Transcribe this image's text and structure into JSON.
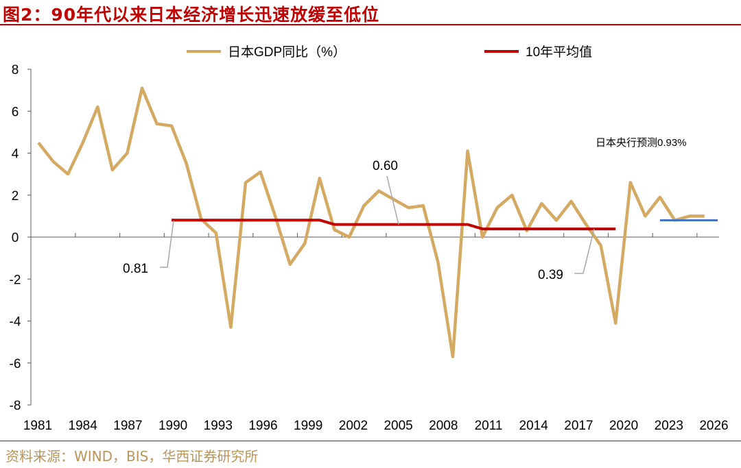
{
  "title": "图2：90年代以来日本经济增长迅速放缓至低位",
  "source": "资料来源：WIND，BIS，华西证券研究所",
  "chart_data": {
    "type": "line",
    "title": "图2：90年代以来日本经济增长迅速放缓至低位",
    "xlabel": "",
    "ylabel": "",
    "ylim": [
      -8,
      8
    ],
    "yticks": [
      -8,
      -6,
      -4,
      -2,
      0,
      2,
      4,
      6,
      8
    ],
    "xtick_labels": [
      "1981",
      "1984",
      "1987",
      "1990",
      "1993",
      "1996",
      "1999",
      "2002",
      "2005",
      "2008",
      "2011",
      "2014",
      "2017",
      "2020",
      "2023",
      "2026"
    ],
    "grid": false,
    "legend": "top",
    "x": [
      1981,
      1982,
      1983,
      1984,
      1985,
      1986,
      1987,
      1988,
      1989,
      1990,
      1991,
      1992,
      1993,
      1994,
      1995,
      1996,
      1997,
      1998,
      1999,
      2000,
      2001,
      2002,
      2003,
      2004,
      2005,
      2006,
      2007,
      2008,
      2009,
      2010,
      2011,
      2012,
      2013,
      2014,
      2015,
      2016,
      2017,
      2018,
      2019,
      2020,
      2021,
      2022,
      2023,
      2024,
      2025,
      2026
    ],
    "series": [
      {
        "name": "日本GDP同比（%）",
        "color": "#D4A962",
        "values": [
          4.5,
          3.6,
          3.0,
          4.5,
          6.2,
          3.2,
          4.0,
          7.1,
          5.4,
          5.3,
          3.5,
          0.85,
          0.2,
          -4.3,
          2.6,
          3.1,
          1.0,
          -1.3,
          -0.3,
          2.8,
          0.35,
          0.0,
          1.5,
          2.2,
          1.8,
          1.4,
          1.5,
          -1.2,
          -5.7,
          4.1,
          0.0,
          1.4,
          2.0,
          0.3,
          1.6,
          0.8,
          1.7,
          0.6,
          -0.4,
          -4.1,
          2.6,
          1.0,
          1.9,
          0.8,
          1.0,
          1.0
        ]
      },
      {
        "name": "10年平均值",
        "color": "#C00000",
        "values": [
          null,
          null,
          null,
          null,
          null,
          null,
          null,
          null,
          null,
          0.81,
          0.81,
          0.81,
          0.81,
          0.81,
          0.81,
          0.81,
          0.81,
          0.81,
          0.81,
          0.81,
          0.6,
          0.6,
          0.6,
          0.6,
          0.6,
          0.6,
          0.6,
          0.6,
          0.6,
          0.6,
          0.39,
          0.39,
          0.39,
          0.39,
          0.39,
          0.39,
          0.39,
          0.39,
          0.39,
          0.39,
          null,
          null,
          null,
          null,
          null,
          null
        ]
      },
      {
        "color": "#4472C4",
        "x_range": [
          2023,
          2026
        ],
        "value": 0.8
      }
    ],
    "annotations": [
      {
        "text": "0.81",
        "x": 1990,
        "y": 0.81
      },
      {
        "text": "0.60",
        "x": 2005,
        "y": 0.6
      },
      {
        "text": "0.39",
        "x": 2018,
        "y": 0.39
      },
      {
        "text": "日本央行预测0.93%"
      }
    ]
  }
}
